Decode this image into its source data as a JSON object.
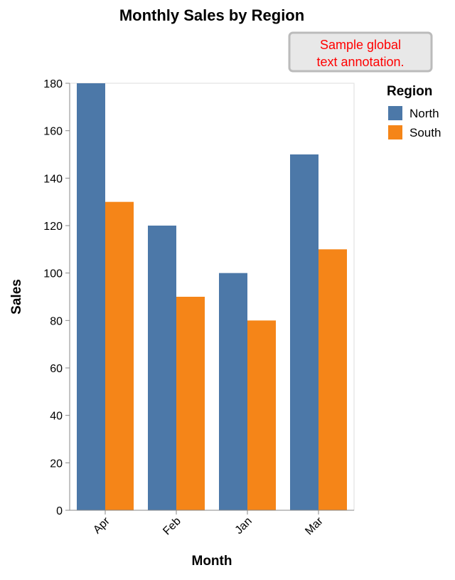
{
  "chart_data": {
    "type": "bar",
    "title": "Monthly Sales by Region",
    "xlabel": "Month",
    "ylabel": "Sales",
    "categories": [
      "Apr",
      "Feb",
      "Jan",
      "Mar"
    ],
    "series": [
      {
        "name": "North",
        "values": [
          180,
          120,
          100,
          150
        ],
        "color": "#4c78a8"
      },
      {
        "name": "South",
        "values": [
          130,
          90,
          80,
          110
        ],
        "color": "#f58518"
      }
    ],
    "ylim": [
      0,
      180
    ],
    "yticks": [
      0,
      20,
      40,
      60,
      80,
      100,
      120,
      140,
      160,
      180
    ],
    "grid": false,
    "legend": {
      "title": "Region",
      "placement": "top-right"
    },
    "annotation": {
      "lines": [
        "Sample global",
        "text annotation."
      ],
      "color": "#ff0000",
      "box_fill": "#e8e8e8",
      "box_border": "#bbbbbb"
    }
  }
}
